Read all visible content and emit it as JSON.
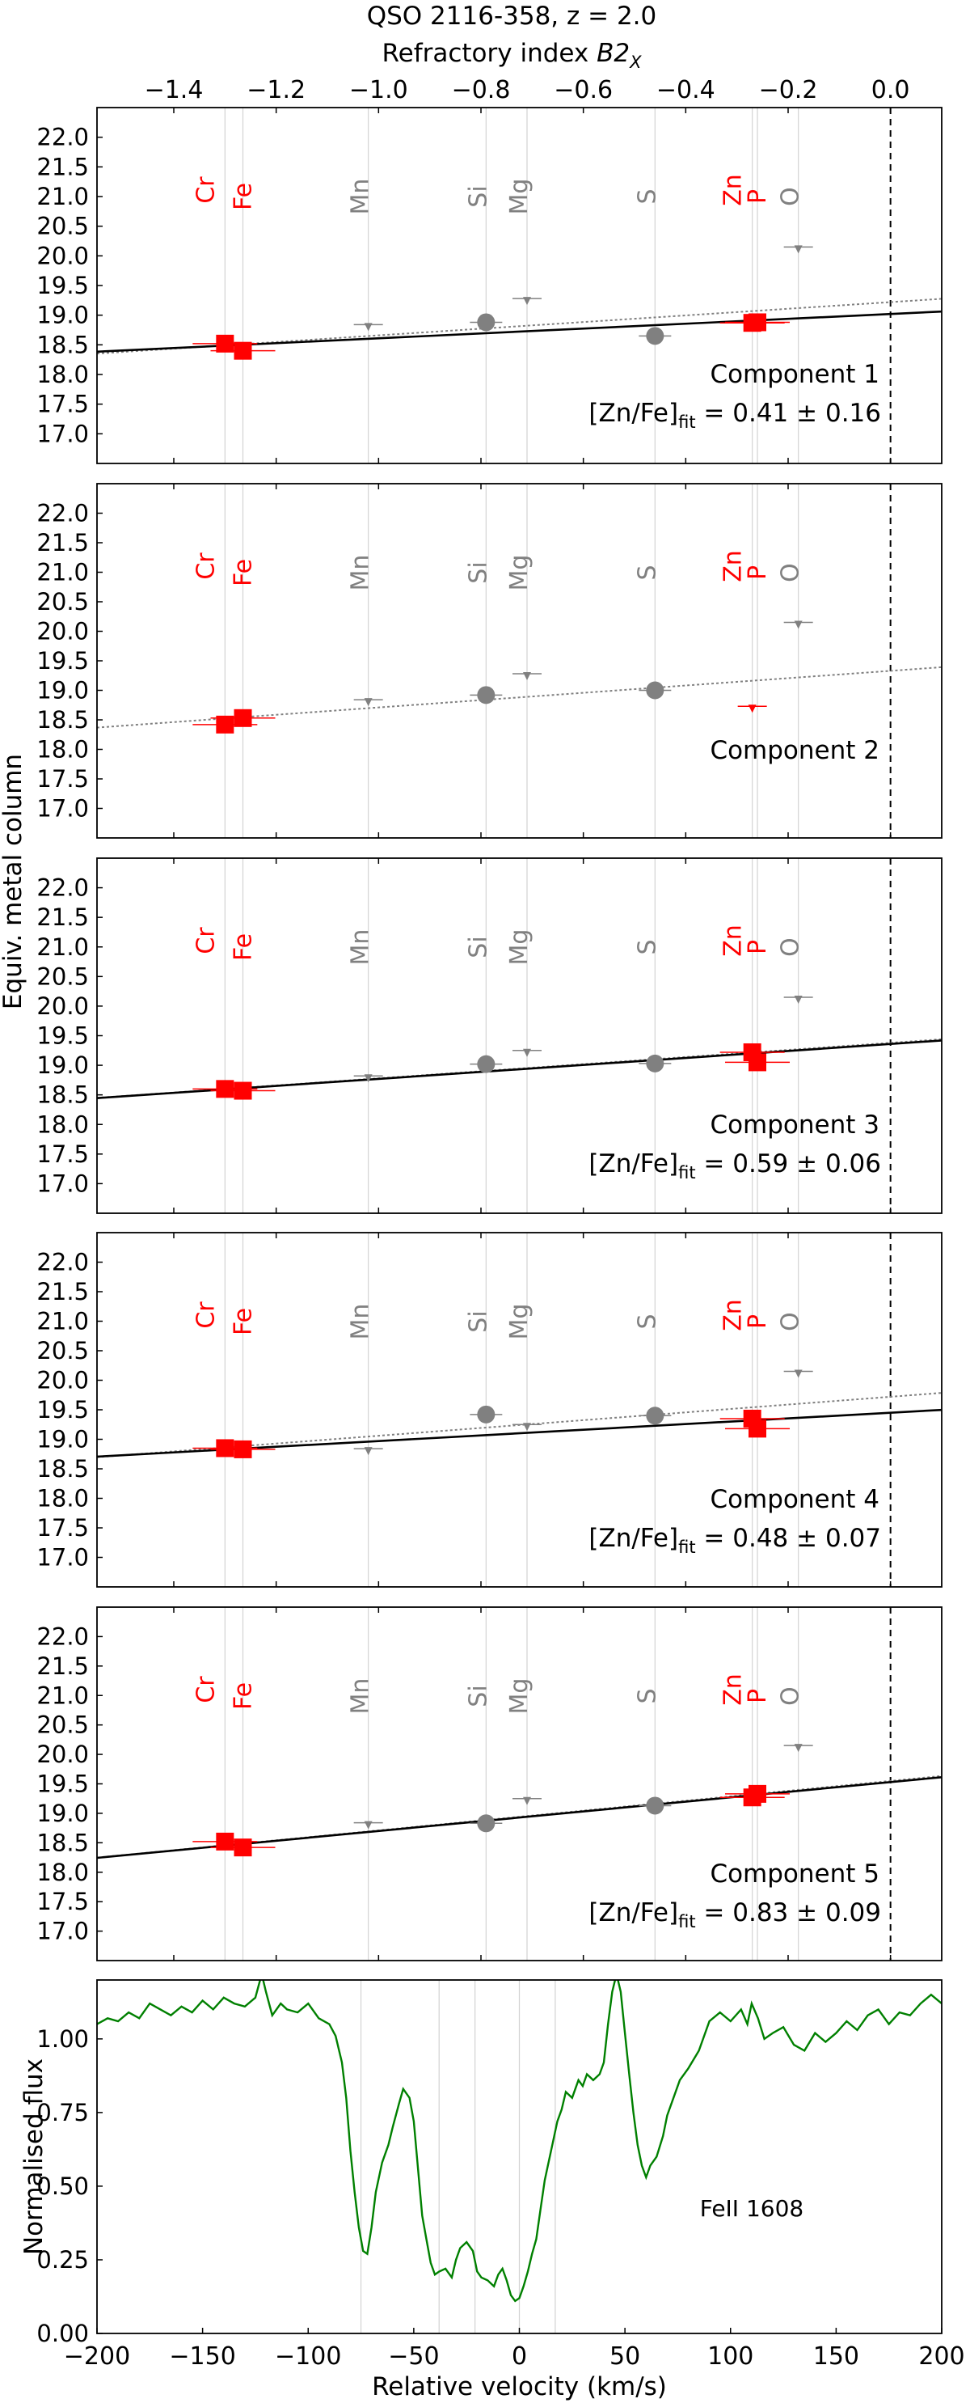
{
  "figure": {
    "title": "QSO 2116-358, z = 2.0",
    "top_axis_label_main": "Refractory index ",
    "top_axis_label_sym": "B2",
    "top_axis_label_sub": "X",
    "y_axis_label": "Equiv. metal column",
    "colors": {
      "volatile": "#808080",
      "refractory": "#ff0000",
      "fit_line": "#000000",
      "dotted_line": "#808080",
      "flux": "#008000",
      "guide_line": "#d3d3d3"
    }
  },
  "chart_data": [
    {
      "type": "scatter",
      "panel": 1,
      "label": "Component 1",
      "fit_prefix": "[Zn/Fe]",
      "fit_sub": "fit",
      "fit_value": " = 0.41 ± 0.16",
      "xlabel": "Refractory index B2_X",
      "ylabel": "Equiv. metal column",
      "xlim": [
        -1.55,
        0.1
      ],
      "ylim": [
        16.5,
        22.5
      ],
      "xticks": [
        "−1.4",
        "−1.2",
        "−1.0",
        "−0.8",
        "−0.6",
        "−0.4",
        "−0.2",
        "0.0"
      ],
      "yticks": [
        "17.0",
        "17.5",
        "18.0",
        "18.5",
        "19.0",
        "19.5",
        "20.0",
        "20.5",
        "21.0",
        "21.5",
        "22.0"
      ],
      "fit_line": {
        "intercept": 19.02,
        "slope": 0.41
      },
      "dotted_line": {
        "intercept": 19.22,
        "slope": 0.56
      },
      "points": [
        {
          "el": "Cr",
          "x": -1.3,
          "y": 18.52,
          "color": "red",
          "marker": "square"
        },
        {
          "el": "Fe",
          "x": -1.265,
          "y": 18.4,
          "color": "red",
          "marker": "square"
        },
        {
          "el": "Mn",
          "x": -1.02,
          "y": 18.84,
          "color": "gray",
          "marker": "lim"
        },
        {
          "el": "Si",
          "x": -0.79,
          "y": 18.88,
          "color": "gray",
          "marker": "circle"
        },
        {
          "el": "Mg",
          "x": -0.71,
          "y": 19.28,
          "color": "gray",
          "marker": "lim"
        },
        {
          "el": "S",
          "x": -0.46,
          "y": 18.65,
          "color": "gray",
          "marker": "circle"
        },
        {
          "el": "Zn",
          "x": -0.27,
          "y": 18.87,
          "color": "red",
          "marker": "square"
        },
        {
          "el": "P",
          "x": -0.26,
          "y": 18.88,
          "color": "red",
          "marker": "square"
        },
        {
          "el": "O",
          "x": -0.18,
          "y": 20.15,
          "color": "gray",
          "marker": "lim"
        }
      ]
    },
    {
      "type": "scatter",
      "panel": 2,
      "label": "Component 2",
      "fit_prefix": "",
      "fit_sub": "",
      "fit_value": "",
      "xlim": [
        -1.55,
        0.1
      ],
      "ylim": [
        16.5,
        22.5
      ],
      "xticks": [
        "−1.4",
        "−1.2",
        "−1.0",
        "−0.8",
        "−0.6",
        "−0.4",
        "−0.2",
        "0.0"
      ],
      "yticks": [
        "17.0",
        "17.5",
        "18.0",
        "18.5",
        "19.0",
        "19.5",
        "20.0",
        "20.5",
        "21.0",
        "21.5",
        "22.0"
      ],
      "fit_line": null,
      "dotted_line": {
        "intercept": 19.33,
        "slope": 0.62
      },
      "points": [
        {
          "el": "Cr",
          "x": -1.3,
          "y": 18.42,
          "color": "red",
          "marker": "square"
        },
        {
          "el": "Fe",
          "x": -1.265,
          "y": 18.53,
          "color": "red",
          "marker": "square"
        },
        {
          "el": "Mn",
          "x": -1.02,
          "y": 18.84,
          "color": "gray",
          "marker": "lim"
        },
        {
          "el": "Si",
          "x": -0.79,
          "y": 18.92,
          "color": "gray",
          "marker": "circle"
        },
        {
          "el": "Mg",
          "x": -0.71,
          "y": 19.28,
          "color": "gray",
          "marker": "lim"
        },
        {
          "el": "S",
          "x": -0.46,
          "y": 19.0,
          "color": "gray",
          "marker": "circle"
        },
        {
          "el": "Zn",
          "x": -0.27,
          "y": 18.73,
          "color": "red",
          "marker": "lim"
        },
        {
          "el": "O",
          "x": -0.18,
          "y": 20.15,
          "color": "gray",
          "marker": "lim"
        }
      ]
    },
    {
      "type": "scatter",
      "panel": 3,
      "label": "Component 3",
      "fit_prefix": "[Zn/Fe]",
      "fit_sub": "fit",
      "fit_value": " = 0.59 ± 0.06",
      "xlim": [
        -1.55,
        0.1
      ],
      "ylim": [
        16.5,
        22.5
      ],
      "xticks": [
        "−1.4",
        "−1.2",
        "−1.0",
        "−0.8",
        "−0.6",
        "−0.4",
        "−0.2",
        "0.0"
      ],
      "yticks": [
        "17.0",
        "17.5",
        "18.0",
        "18.5",
        "19.0",
        "19.5",
        "20.0",
        "20.5",
        "21.0",
        "21.5",
        "22.0"
      ],
      "fit_line": {
        "intercept": 19.36,
        "slope": 0.59
      },
      "dotted_line": {
        "intercept": 19.38,
        "slope": 0.6
      },
      "points": [
        {
          "el": "Cr",
          "x": -1.3,
          "y": 18.6,
          "color": "red",
          "marker": "square"
        },
        {
          "el": "Fe",
          "x": -1.265,
          "y": 18.57,
          "color": "red",
          "marker": "square"
        },
        {
          "el": "Mn",
          "x": -1.02,
          "y": 18.82,
          "color": "gray",
          "marker": "lim"
        },
        {
          "el": "Si",
          "x": -0.79,
          "y": 19.02,
          "color": "gray",
          "marker": "circle"
        },
        {
          "el": "Mg",
          "x": -0.71,
          "y": 19.25,
          "color": "gray",
          "marker": "lim"
        },
        {
          "el": "S",
          "x": -0.46,
          "y": 19.03,
          "color": "gray",
          "marker": "circle"
        },
        {
          "el": "Zn",
          "x": -0.27,
          "y": 19.22,
          "color": "red",
          "marker": "square"
        },
        {
          "el": "P",
          "x": -0.26,
          "y": 19.05,
          "color": "red",
          "marker": "square"
        },
        {
          "el": "O",
          "x": -0.18,
          "y": 20.15,
          "color": "gray",
          "marker": "lim"
        }
      ]
    },
    {
      "type": "scatter",
      "panel": 4,
      "label": "Component 4",
      "fit_prefix": "[Zn/Fe]",
      "fit_sub": "fit",
      "fit_value": " = 0.48 ± 0.07",
      "xlim": [
        -1.55,
        0.1
      ],
      "ylim": [
        16.5,
        22.5
      ],
      "xticks": [
        "−1.4",
        "−1.2",
        "−1.0",
        "−0.8",
        "−0.6",
        "−0.4",
        "−0.2",
        "0.0"
      ],
      "yticks": [
        "17.0",
        "17.5",
        "18.0",
        "18.5",
        "19.0",
        "19.5",
        "20.0",
        "20.5",
        "21.0",
        "21.5",
        "22.0"
      ],
      "fit_line": {
        "intercept": 19.45,
        "slope": 0.48
      },
      "dotted_line": {
        "intercept": 19.72,
        "slope": 0.66
      },
      "points": [
        {
          "el": "Cr",
          "x": -1.3,
          "y": 18.85,
          "color": "red",
          "marker": "square"
        },
        {
          "el": "Fe",
          "x": -1.265,
          "y": 18.83,
          "color": "red",
          "marker": "square"
        },
        {
          "el": "Mn",
          "x": -1.02,
          "y": 18.84,
          "color": "gray",
          "marker": "lim"
        },
        {
          "el": "Si",
          "x": -0.79,
          "y": 19.42,
          "color": "gray",
          "marker": "circle"
        },
        {
          "el": "Mg",
          "x": -0.71,
          "y": 19.25,
          "color": "gray",
          "marker": "lim"
        },
        {
          "el": "S",
          "x": -0.46,
          "y": 19.4,
          "color": "gray",
          "marker": "circle"
        },
        {
          "el": "Zn",
          "x": -0.27,
          "y": 19.35,
          "color": "red",
          "marker": "square"
        },
        {
          "el": "P",
          "x": -0.26,
          "y": 19.18,
          "color": "red",
          "marker": "square"
        },
        {
          "el": "O",
          "x": -0.18,
          "y": 20.15,
          "color": "gray",
          "marker": "lim"
        }
      ]
    },
    {
      "type": "scatter",
      "panel": 5,
      "label": "Component 5",
      "fit_prefix": "[Zn/Fe]",
      "fit_sub": "fit",
      "fit_value": " = 0.83 ± 0.09",
      "xlim": [
        -1.55,
        0.1
      ],
      "ylim": [
        16.5,
        22.5
      ],
      "xticks": [
        "−1.4",
        "−1.2",
        "−1.0",
        "−0.8",
        "−0.6",
        "−0.4",
        "−0.2",
        "0.0"
      ],
      "yticks": [
        "17.0",
        "17.5",
        "18.0",
        "18.5",
        "19.0",
        "19.5",
        "20.0",
        "20.5",
        "21.0",
        "21.5",
        "22.0"
      ],
      "fit_line": {
        "intercept": 19.53,
        "slope": 0.83
      },
      "dotted_line": {
        "intercept": 19.55,
        "slope": 0.84
      },
      "points": [
        {
          "el": "Cr",
          "x": -1.3,
          "y": 18.52,
          "color": "red",
          "marker": "square"
        },
        {
          "el": "Fe",
          "x": -1.265,
          "y": 18.42,
          "color": "red",
          "marker": "square"
        },
        {
          "el": "Mn",
          "x": -1.02,
          "y": 18.84,
          "color": "gray",
          "marker": "lim"
        },
        {
          "el": "Si",
          "x": -0.79,
          "y": 18.83,
          "color": "gray",
          "marker": "circle"
        },
        {
          "el": "Mg",
          "x": -0.71,
          "y": 19.25,
          "color": "gray",
          "marker": "lim"
        },
        {
          "el": "S",
          "x": -0.46,
          "y": 19.13,
          "color": "gray",
          "marker": "circle"
        },
        {
          "el": "Zn",
          "x": -0.27,
          "y": 19.27,
          "color": "red",
          "marker": "square"
        },
        {
          "el": "P",
          "x": -0.26,
          "y": 19.33,
          "color": "red",
          "marker": "square"
        },
        {
          "el": "O",
          "x": -0.18,
          "y": 20.15,
          "color": "gray",
          "marker": "lim"
        }
      ]
    },
    {
      "type": "line",
      "panel": 6,
      "label": "FeII 1608",
      "xlabel": "Relative velocity (km/s)",
      "ylabel": "Normalised flux",
      "xlim": [
        -200,
        200
      ],
      "ylim": [
        0.0,
        1.2
      ],
      "xticks": [
        "−200",
        "−150",
        "−100",
        "−50",
        "0",
        "50",
        "100",
        "150",
        "200"
      ],
      "yticks": [
        "0.00",
        "0.25",
        "0.50",
        "0.75",
        "1.00"
      ],
      "component_velocities": [
        -75,
        -38,
        -21,
        0,
        17
      ],
      "series": [
        {
          "x": [
            -200,
            -195,
            -190,
            -185,
            -180,
            -175,
            -170,
            -165,
            -160,
            -155,
            -150,
            -145,
            -140,
            -135,
            -130,
            -125,
            -122,
            -120,
            -117,
            -113,
            -110,
            -105,
            -100,
            -95,
            -90,
            -87,
            -84,
            -82,
            -80,
            -78,
            -76,
            -74,
            -72,
            -70,
            -68,
            -65,
            -62,
            -60,
            -57,
            -55,
            -52,
            -50,
            -48,
            -46,
            -44,
            -42,
            -40,
            -38,
            -35,
            -32,
            -30,
            -28,
            -25,
            -22,
            -20,
            -18,
            -15,
            -12,
            -10,
            -8,
            -6,
            -4,
            -2,
            0,
            2,
            4,
            6,
            8,
            10,
            12,
            15,
            18,
            20,
            22,
            25,
            28,
            30,
            32,
            35,
            38,
            40,
            42,
            44,
            46,
            48,
            50,
            52,
            54,
            56,
            58,
            60,
            62,
            65,
            68,
            70,
            73,
            76,
            80,
            85,
            90,
            95,
            100,
            105,
            108,
            110,
            113,
            116,
            120,
            125,
            130,
            135,
            140,
            145,
            150,
            155,
            160,
            165,
            170,
            175,
            180,
            185,
            190,
            195,
            200
          ],
          "y": [
            1.05,
            1.07,
            1.06,
            1.09,
            1.07,
            1.12,
            1.1,
            1.08,
            1.11,
            1.09,
            1.13,
            1.1,
            1.14,
            1.12,
            1.11,
            1.14,
            1.22,
            1.16,
            1.08,
            1.12,
            1.1,
            1.09,
            1.12,
            1.07,
            1.05,
            1.01,
            0.92,
            0.8,
            0.62,
            0.48,
            0.36,
            0.28,
            0.27,
            0.36,
            0.48,
            0.58,
            0.64,
            0.7,
            0.78,
            0.83,
            0.8,
            0.72,
            0.56,
            0.4,
            0.32,
            0.24,
            0.2,
            0.21,
            0.22,
            0.19,
            0.25,
            0.29,
            0.31,
            0.28,
            0.21,
            0.19,
            0.18,
            0.16,
            0.2,
            0.22,
            0.18,
            0.13,
            0.11,
            0.12,
            0.16,
            0.21,
            0.27,
            0.32,
            0.42,
            0.52,
            0.62,
            0.72,
            0.76,
            0.82,
            0.8,
            0.86,
            0.84,
            0.88,
            0.86,
            0.88,
            0.92,
            1.05,
            1.16,
            1.22,
            1.16,
            1.02,
            0.88,
            0.75,
            0.64,
            0.57,
            0.53,
            0.57,
            0.6,
            0.67,
            0.74,
            0.8,
            0.86,
            0.9,
            0.96,
            1.06,
            1.09,
            1.06,
            1.1,
            1.05,
            1.12,
            1.07,
            1.0,
            1.02,
            1.04,
            0.98,
            0.96,
            1.02,
            0.99,
            1.02,
            1.06,
            1.03,
            1.08,
            1.1,
            1.05,
            1.09,
            1.08,
            1.12,
            1.15,
            1.12
          ]
        }
      ]
    }
  ]
}
